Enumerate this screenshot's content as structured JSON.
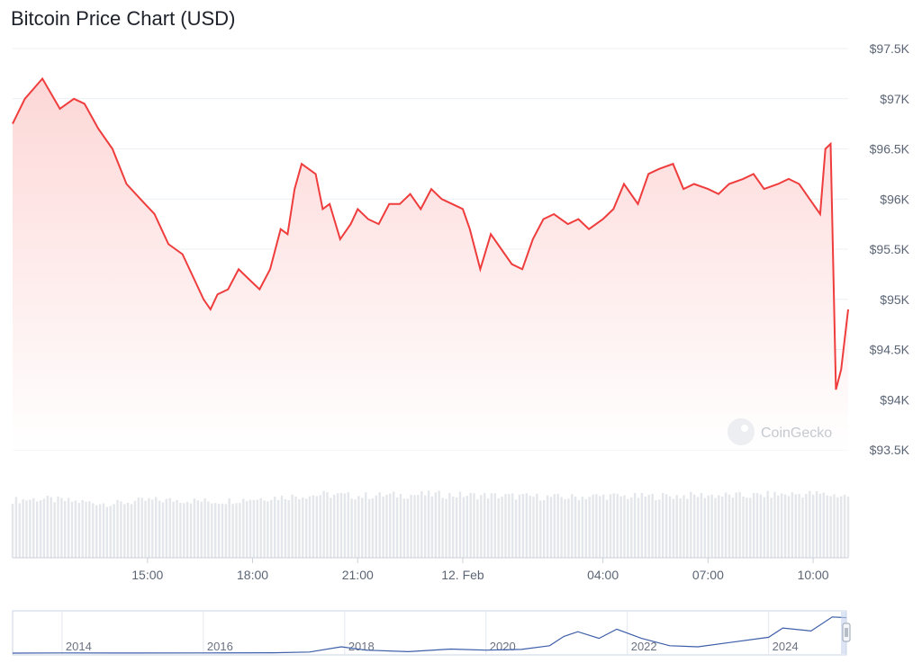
{
  "title": "Bitcoin Price Chart (USD)",
  "watermark": "CoinGecko",
  "colors": {
    "line": "#ef3d3d",
    "area_top": "#fdd7d7",
    "grid": "#eceff3",
    "volume": "#e3e6ea",
    "navigator": "#3d5ea8"
  },
  "chart_data": {
    "type": "area",
    "ylim": [
      93500,
      97500
    ],
    "y_ticks": [
      97500,
      97000,
      96500,
      96000,
      95500,
      95000,
      94500,
      94000,
      93500
    ],
    "y_tick_labels": [
      "$97.5K",
      "$97K",
      "$96.5K",
      "$96K",
      "$95.5K",
      "$95K",
      "$94.5K",
      "$94K",
      "$93.5K"
    ],
    "x_tick_labels": [
      "15:00",
      "18:00",
      "21:00",
      "12. Feb",
      "04:00",
      "07:00",
      "10:00"
    ],
    "x_tick_hours": [
      15,
      18,
      21,
      24,
      28,
      31,
      34
    ],
    "x_range_hours": [
      11.15,
      35.0
    ],
    "series": [
      {
        "x_hours": [
          11.15,
          11.5,
          12.0,
          12.5,
          12.9,
          13.2,
          13.6,
          14.0,
          14.4,
          14.8,
          15.2,
          15.6,
          16.0,
          16.4,
          16.6,
          16.8,
          17.0,
          17.3,
          17.6,
          17.9,
          18.2,
          18.5,
          18.8,
          19.0,
          19.2,
          19.4,
          19.6,
          19.8,
          20.0,
          20.2,
          20.5,
          20.8,
          21.0,
          21.3,
          21.6,
          21.9,
          22.2,
          22.5,
          22.8,
          23.1,
          23.4,
          23.7,
          24.0,
          24.2,
          24.5,
          24.8,
          25.1,
          25.4,
          25.7,
          26.0,
          26.3,
          26.6,
          27.0,
          27.3,
          27.6,
          28.0,
          28.3,
          28.6,
          29.0,
          29.3,
          29.6,
          30.0,
          30.3,
          30.6,
          31.0,
          31.3,
          31.6,
          32.0,
          32.3,
          32.6,
          33.0,
          33.3,
          33.6,
          33.9,
          34.2,
          34.35,
          34.5,
          34.65,
          34.8,
          35.0
        ],
        "values": [
          96750,
          97000,
          97200,
          96900,
          97000,
          96950,
          96700,
          96500,
          96150,
          96000,
          95850,
          95550,
          95450,
          95150,
          95000,
          94900,
          95050,
          95100,
          95300,
          95200,
          95100,
          95300,
          95700,
          95650,
          96100,
          96350,
          96300,
          96250,
          95900,
          95950,
          95600,
          95750,
          95900,
          95800,
          95750,
          95950,
          95950,
          96050,
          95900,
          96100,
          96000,
          95950,
          95900,
          95700,
          95300,
          95650,
          95500,
          95350,
          95300,
          95600,
          95800,
          95850,
          95750,
          95800,
          95700,
          95800,
          95900,
          96150,
          95950,
          96250,
          96300,
          96350,
          96100,
          96150,
          96100,
          96050,
          96150,
          96200,
          96250,
          96100,
          96150,
          96200,
          96150,
          96000,
          95850,
          96500,
          96550,
          94100,
          94300,
          94900
        ]
      }
    ],
    "volume": {
      "x_hours": [
        11.15,
        12.0,
        13.0,
        14.0,
        15.0,
        16.0,
        17.0,
        18.0,
        19.0,
        20.0,
        21.0,
        22.0,
        23.0,
        24.0,
        25.0,
        26.0,
        27.0,
        28.0,
        29.0,
        30.0,
        31.0,
        32.0,
        33.0,
        34.0,
        35.0
      ],
      "values": [
        0.8,
        0.82,
        0.78,
        0.75,
        0.8,
        0.8,
        0.78,
        0.82,
        0.85,
        0.88,
        0.86,
        0.87,
        0.88,
        0.87,
        0.86,
        0.85,
        0.84,
        0.86,
        0.85,
        0.86,
        0.87,
        0.86,
        0.88,
        0.89,
        0.86
      ]
    },
    "navigator": {
      "x_tick_labels": [
        "2014",
        "2016",
        "2018",
        "2020",
        "2022",
        "2024"
      ],
      "x_tick_years": [
        2014,
        2016,
        2018,
        2020,
        2022,
        2024
      ],
      "x_range_years": [
        2013.3,
        2025.1
      ],
      "x_years": [
        2013.3,
        2014,
        2015,
        2016,
        2017,
        2017.5,
        2017.95,
        2018.3,
        2018.9,
        2019.5,
        2020.0,
        2020.5,
        2020.9,
        2021.1,
        2021.3,
        2021.6,
        2021.85,
        2022.2,
        2022.6,
        2023.0,
        2023.5,
        2024.0,
        2024.2,
        2024.6,
        2024.9,
        2025.1
      ],
      "values": [
        100,
        500,
        300,
        400,
        1000,
        3000,
        17000,
        8000,
        4000,
        11000,
        8000,
        10000,
        20000,
        45000,
        58000,
        40000,
        65000,
        40000,
        20000,
        17000,
        30000,
        43000,
        68000,
        60000,
        98000,
        96000
      ]
    }
  }
}
